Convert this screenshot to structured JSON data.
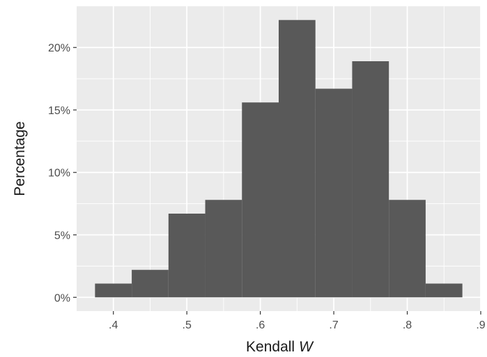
{
  "chart_data": {
    "type": "bar",
    "subtype": "histogram",
    "bins": [
      {
        "start": 0.375,
        "end": 0.425,
        "value": 1.1
      },
      {
        "start": 0.425,
        "end": 0.475,
        "value": 2.2
      },
      {
        "start": 0.475,
        "end": 0.525,
        "value": 6.7
      },
      {
        "start": 0.525,
        "end": 0.575,
        "value": 7.8
      },
      {
        "start": 0.575,
        "end": 0.625,
        "value": 15.6
      },
      {
        "start": 0.625,
        "end": 0.675,
        "value": 22.2
      },
      {
        "start": 0.675,
        "end": 0.725,
        "value": 16.7
      },
      {
        "start": 0.725,
        "end": 0.775,
        "value": 18.9
      },
      {
        "start": 0.775,
        "end": 0.825,
        "value": 7.8
      },
      {
        "start": 0.825,
        "end": 0.875,
        "value": 1.1
      }
    ],
    "xlabel": "Kendall",
    "xlabel_italic": "W",
    "ylabel": "Percentage",
    "xlim": [
      0.35,
      0.9
    ],
    "ylim": [
      -1.1,
      23.3
    ],
    "x_ticks": [
      {
        "value": 0.4,
        "label": ".4"
      },
      {
        "value": 0.5,
        "label": ".5"
      },
      {
        "value": 0.6,
        "label": ".6"
      },
      {
        "value": 0.7,
        "label": ".7"
      },
      {
        "value": 0.8,
        "label": ".8"
      },
      {
        "value": 0.9,
        "label": ".9"
      }
    ],
    "y_ticks": [
      {
        "value": 0,
        "label": "0%"
      },
      {
        "value": 5,
        "label": "5%"
      },
      {
        "value": 10,
        "label": "10%"
      },
      {
        "value": 15,
        "label": "15%"
      },
      {
        "value": 20,
        "label": "20%"
      }
    ],
    "grid": true,
    "colors": {
      "panel": "#ebebeb",
      "grid_major": "#ffffff",
      "bar": "#595959",
      "tick_label": "#4d4d4d",
      "axis_title": "#1a1a1a"
    }
  }
}
